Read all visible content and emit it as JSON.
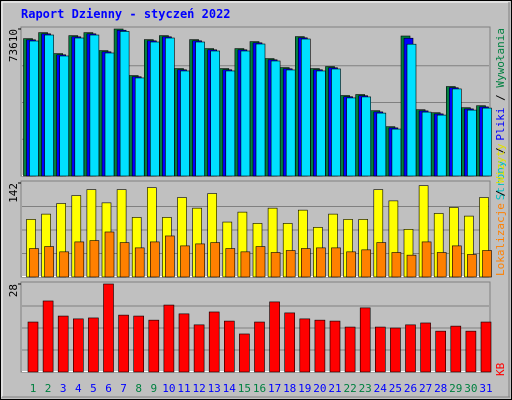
{
  "title": "Raport Dzienny -  styczeń 2022",
  "legend_separator": " / ",
  "chart_data": [
    {
      "type": "bar",
      "ylim": [
        0,
        73610
      ],
      "yticks": [
        73610
      ],
      "series": [
        {
          "name": "Wywołania",
          "color": "#008040",
          "values": [
            68800,
            71800,
            61300,
            70300,
            71800,
            62800,
            73610,
            50300,
            68300,
            70300,
            53800,
            68300,
            63800,
            53800,
            63800,
            67300,
            58800,
            54300,
            69800,
            53800,
            54800,
            40300,
            40800,
            32700,
            24700,
            70100,
            33200,
            31700,
            44800,
            34200,
            35200
          ]
        },
        {
          "name": "Pliki",
          "color": "#0000ff",
          "values": [
            68200,
            71200,
            60700,
            69700,
            71200,
            62200,
            73000,
            49700,
            67700,
            69700,
            53200,
            67700,
            63200,
            53200,
            63200,
            66700,
            58200,
            53700,
            69200,
            53200,
            54200,
            39700,
            40200,
            32100,
            24100,
            69000,
            32600,
            31100,
            44200,
            33600,
            34600
          ]
        },
        {
          "name": "Strony",
          "color": "#00e0ff",
          "values": [
            67600,
            70600,
            60100,
            69100,
            70600,
            61600,
            72400,
            49100,
            67100,
            69100,
            52600,
            67100,
            62600,
            52600,
            62600,
            66100,
            57600,
            53100,
            68600,
            52600,
            53600,
            39100,
            39600,
            31500,
            23500,
            66000,
            32000,
            30500,
            43600,
            33000,
            34000
          ]
        }
      ]
    },
    {
      "type": "bar",
      "ylim": [
        0,
        142
      ],
      "yticks": [
        142
      ],
      "series": [
        {
          "name": "Wizyty",
          "color": "#ffff00",
          "values": [
            87,
            95,
            111,
            123,
            132,
            112,
            132,
            90,
            135,
            90,
            120,
            104,
            126,
            83,
            98,
            81,
            104,
            81,
            101,
            75,
            95,
            87,
            87,
            132,
            115,
            72,
            138,
            96,
            105,
            92,
            120
          ]
        },
        {
          "name": "Lokalizacje",
          "color": "#ff8000",
          "values": [
            43,
            46,
            38,
            53,
            55,
            68,
            52,
            44,
            53,
            62,
            47,
            50,
            52,
            43,
            38,
            46,
            37,
            40,
            43,
            44,
            44,
            38,
            41,
            52,
            37,
            33,
            53,
            37,
            47,
            34,
            40
          ]
        }
      ]
    },
    {
      "type": "bar",
      "ylim": [
        0,
        28
      ],
      "yticks": [
        28
      ],
      "categories": [
        "1",
        "2",
        "3",
        "4",
        "5",
        "6",
        "7",
        "8",
        "9",
        "10",
        "11",
        "12",
        "13",
        "14",
        "15",
        "16",
        "17",
        "18",
        "19",
        "20",
        "21",
        "22",
        "23",
        "24",
        "25",
        "26",
        "27",
        "28",
        "29",
        "30",
        "31"
      ],
      "category_colors": [
        "#008040",
        "#008040",
        "#0000ff",
        "#0000ff",
        "#0000ff",
        "#0000ff",
        "#0000ff",
        "#008040",
        "#008040",
        "#0000ff",
        "#0000ff",
        "#0000ff",
        "#0000ff",
        "#0000ff",
        "#008040",
        "#008040",
        "#0000ff",
        "#0000ff",
        "#0000ff",
        "#0000ff",
        "#0000ff",
        "#008040",
        "#008040",
        "#0000ff",
        "#0000ff",
        "#0000ff",
        "#0000ff",
        "#0000ff",
        "#008040",
        "#008040",
        "#0000ff"
      ],
      "series": [
        {
          "name": "KB",
          "color": "#ff0000",
          "values": [
            15.9,
            22.6,
            17.8,
            16.9,
            17.2,
            28,
            18.1,
            17.8,
            16.5,
            21.3,
            18.5,
            15,
            19.1,
            16.2,
            12.1,
            15.9,
            22.3,
            18.8,
            16.9,
            16.5,
            16.2,
            14.3,
            20.4,
            14.3,
            14,
            15,
            15.6,
            13,
            14.6,
            13,
            15.9
          ]
        }
      ]
    }
  ]
}
